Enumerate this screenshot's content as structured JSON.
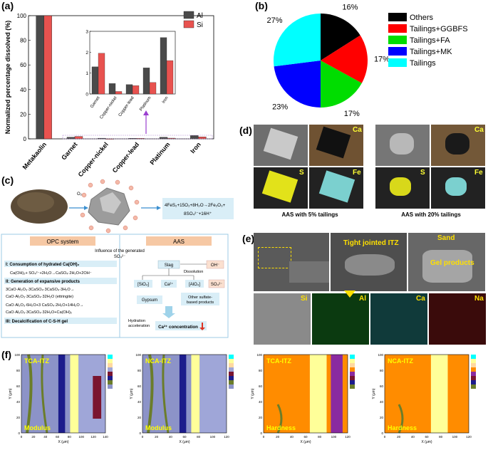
{
  "panels": {
    "a": "(a)",
    "b": "(b)",
    "c": "(c)",
    "d": "(d)",
    "e": "(e)",
    "f": "(f)"
  },
  "colors": {
    "al": "#4a4a4a",
    "si": "#e8524f",
    "pie": [
      "#000000",
      "#ff0000",
      "#00dd00",
      "#0000ff",
      "#00ffff"
    ]
  },
  "chart_data": [
    {
      "type": "bar",
      "title": "",
      "ylabel": "Normalized percentage dissolved (%)",
      "xlabel": "",
      "ylim": [
        0,
        100
      ],
      "yticks": [
        "0",
        "20",
        "40",
        "60",
        "80",
        "100"
      ],
      "categories": [
        "Metakaolin",
        "Garnet",
        "Copper-nickel",
        "Copper-lead",
        "Platinum",
        "Iron"
      ],
      "series": [
        {
          "name": "Al",
          "values": [
            100,
            1.3,
            0.5,
            0.45,
            1.25,
            2.7
          ]
        },
        {
          "name": "Si",
          "values": [
            100,
            1.95,
            0.12,
            0.4,
            0.55,
            1.6
          ]
        }
      ],
      "inset": {
        "categories": [
          "Garnet",
          "Copper-nickel",
          "Copper-lead",
          "Platinum",
          "Iron"
        ],
        "ylim": [
          0,
          3
        ],
        "yticks": [
          "0",
          "1",
          "2",
          "3"
        ],
        "series": [
          {
            "name": "Al",
            "values": [
              1.3,
              0.5,
              0.45,
              1.25,
              2.7
            ]
          },
          {
            "name": "Si",
            "values": [
              1.95,
              0.12,
              0.4,
              0.55,
              1.6
            ]
          }
        ]
      }
    },
    {
      "type": "pie",
      "title": "",
      "categories": [
        "Others",
        "Tailings+GGBFS",
        "Tailings+FA",
        "Tailings+MK",
        "Tailings"
      ],
      "values": [
        16,
        17,
        17,
        23,
        27
      ],
      "labels": [
        "16%",
        "17%",
        "17%",
        "23%",
        "27%"
      ],
      "legend": "right"
    }
  ],
  "schematic_c": {
    "o2": "O₂",
    "reaction": [
      "4FeS₂+15O₂+8H₂O→2Fe₂O₃+",
      "8SO₄²⁻+16H⁺"
    ],
    "opc_title": "OPC system",
    "aas_title": "AAS",
    "influence": [
      "Influence of the generated",
      "SO₄²⁻"
    ],
    "s1": "I: Consumption of hydrated Ca(OH)₂",
    "s1_eq": "Ca(OH)₂+ SO₄²⁻+2H₂O→CaSO₄·2H₂O+2OH⁻",
    "s2": "II: Generation of expansive products",
    "s2_eq": [
      "3CaO·Al₂O₃·3CaSO₄·3CaSO₄·3H₂O→",
      "CaO·Al₂O₃·3CaSO₄·32H₂O (ettringite)",
      "CaO·Al₂O₃·6H₂O+3 CaSO₄·2H₂O+14H₂O→",
      "CaO·Al₂O₃·3CaSO₄·32H₂O+Ca(OH)₂"
    ],
    "s3": "III: Decalcification of C-S-H gel",
    "slag": "Slag",
    "oh": "OH⁻",
    "dissolution": "Dissolution",
    "sio4": "[SiO₄]",
    "ca2": "Ca²⁺",
    "alo4": "[AlO₄]",
    "so4": "SO₄²⁻",
    "gypsum": "Gypsum",
    "other": [
      "Other sulfate-",
      "based products"
    ],
    "hydration": [
      "Hydration",
      "acceleration"
    ],
    "ca_conc": "Ca²⁺ concentration"
  },
  "sem_d": {
    "ca": "Ca",
    "s": "S",
    "fe": "Fe",
    "cap_left": "AAS with 5% tailings",
    "cap_right": "AAS with 20% tailings"
  },
  "sem_e": {
    "tight": "Tight jointed ITZ",
    "sand": "Sand",
    "gel": "Gel products",
    "si": "Si",
    "al": "Al",
    "ca": "Ca",
    "na": "Na"
  },
  "maps_f": {
    "titles": [
      "TCA-ITZ",
      "NCA-ITZ",
      "TCA-ITZ",
      "NCA-ITZ"
    ],
    "props": [
      "Modulus",
      "Modulus",
      "Hardness",
      "Hardness"
    ],
    "ylabel": "Y (μm)",
    "xlabel": "X (μm)",
    "yticks": [
      "0",
      "20",
      "40",
      "60",
      "80",
      "100"
    ],
    "xticks_a": [
      "0",
      "20",
      "40",
      "60",
      "80",
      "100",
      "120",
      "140"
    ],
    "xticks_b": [
      "0",
      "20",
      "40",
      "60",
      "80",
      "100",
      "120"
    ]
  }
}
